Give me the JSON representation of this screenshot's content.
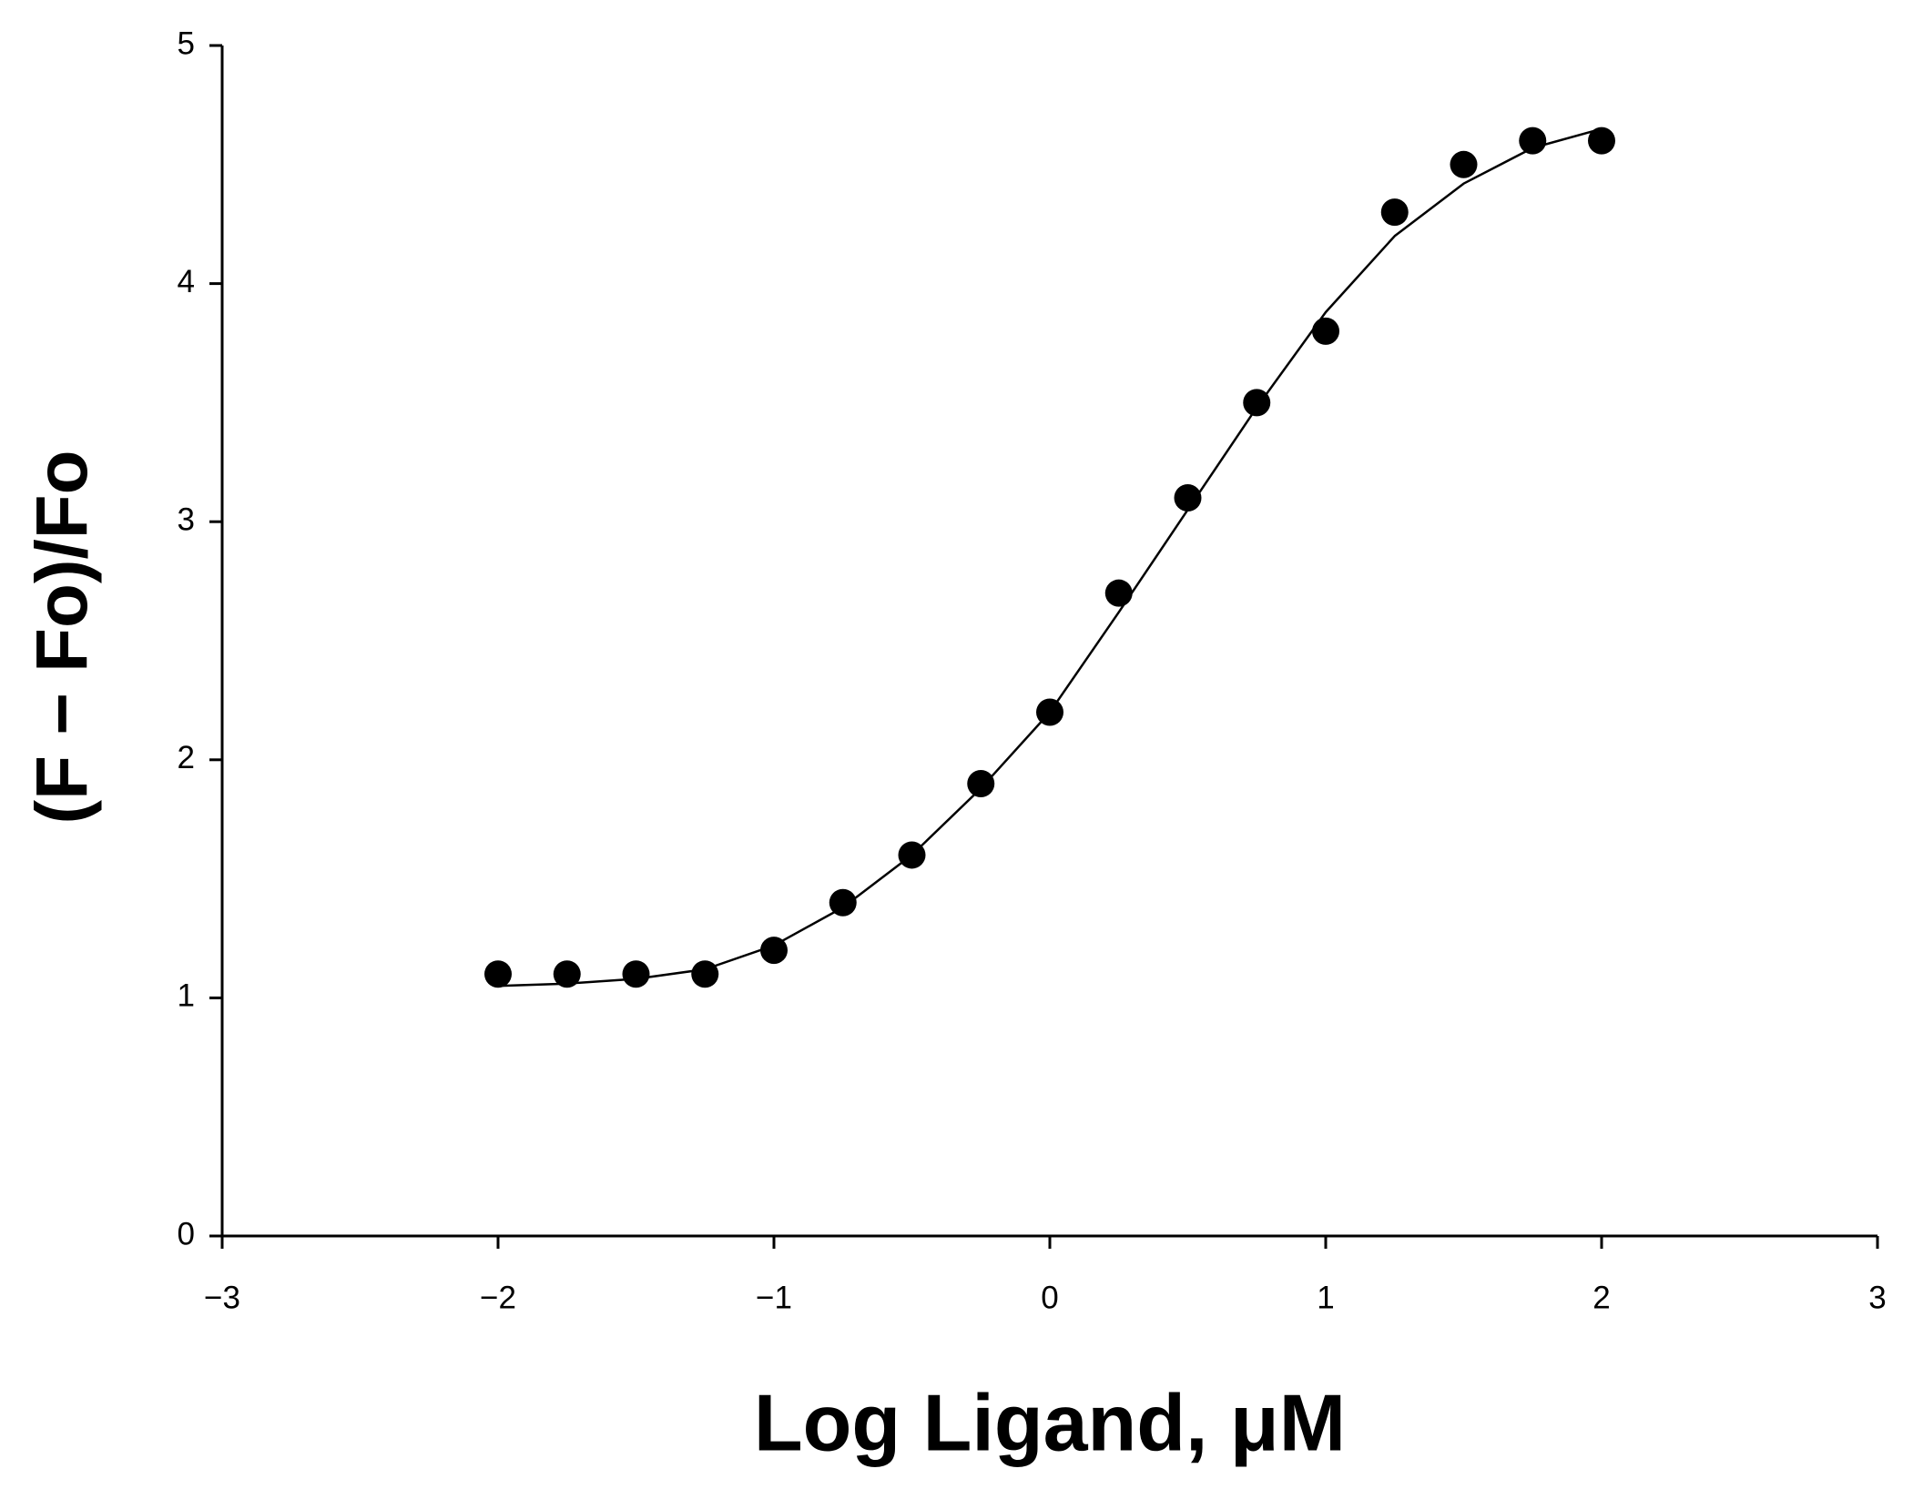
{
  "chart_data": {
    "type": "scatter",
    "xlabel": "Log Ligand, μM",
    "ylabel": "(F − Fo)/Fo",
    "xlim": [
      -3,
      3
    ],
    "xticks": [
      {
        "value": -3,
        "label": "−3"
      },
      {
        "value": -2,
        "label": "−2"
      },
      {
        "value": -1,
        "label": "−1"
      },
      0,
      1,
      2,
      3
    ],
    "ylim": [
      0,
      5
    ],
    "yticks": [
      0,
      1,
      2,
      3,
      4,
      5
    ],
    "grid": false,
    "series": [
      {
        "type": "scatter",
        "color": "#000000",
        "x": [
          -2,
          -1.75,
          -1.5,
          -1.25,
          -1,
          -0.75,
          -0.5,
          -0.25,
          0,
          0.25,
          0.5,
          0.75,
          1,
          1.25,
          1.5,
          1.75,
          2
        ],
        "values": [
          1.1,
          1.1,
          1.1,
          1.1,
          1.2,
          1.4,
          1.6,
          1.9,
          2.2,
          2.7,
          3.1,
          3.5,
          3.8,
          4.3,
          4.5,
          4.6,
          4.6
        ]
      },
      {
        "type": "line",
        "color": "#000000",
        "x": [
          -2,
          -1.75,
          -1.5,
          -1.25,
          -1,
          -0.75,
          -0.5,
          -0.25,
          0,
          0.25,
          0.5,
          0.75,
          1,
          1.25,
          1.5,
          1.75,
          2
        ],
        "values": [
          1.05,
          1.06,
          1.08,
          1.12,
          1.22,
          1.38,
          1.6,
          1.88,
          2.2,
          2.62,
          3.05,
          3.48,
          3.88,
          4.2,
          4.42,
          4.57,
          4.65
        ]
      }
    ]
  }
}
